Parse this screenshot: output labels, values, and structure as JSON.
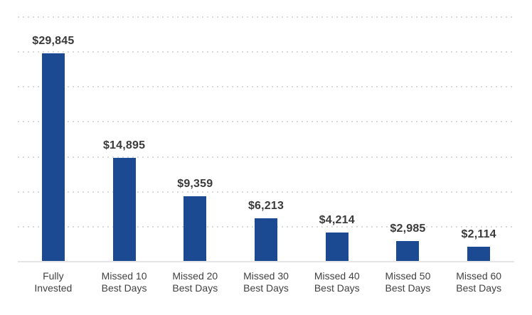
{
  "chart_data": {
    "type": "bar",
    "title": "",
    "xlabel": "",
    "ylabel": "",
    "categories": [
      [
        "Fully",
        "Invested"
      ],
      [
        "Missed 10",
        "Best Days"
      ],
      [
        "Missed 20",
        "Best Days"
      ],
      [
        "Missed 30",
        "Best Days"
      ],
      [
        "Missed 40",
        "Best Days"
      ],
      [
        "Missed 50",
        "Best Days"
      ],
      [
        "Missed 60",
        "Best Days"
      ]
    ],
    "values": [
      29845,
      14895,
      9359,
      6213,
      4214,
      2985,
      2114
    ],
    "value_labels": [
      "$29,845",
      "$14,895",
      "$9,359",
      "$6,213",
      "$4,214",
      "$2,985",
      "$2,114"
    ],
    "ylim": [
      0,
      35000
    ],
    "gridline_step": 5000,
    "grid": "horizontal-dotted",
    "legend": "none",
    "y_tick_labels": "none",
    "colors": {
      "bar": "#1b4a92",
      "gridline": "#d9d9d9",
      "axis_line": "#e5e5e8",
      "value_label_text": "#3a3a3a",
      "category_label_text": "#414141",
      "background": "#ffffff"
    }
  }
}
